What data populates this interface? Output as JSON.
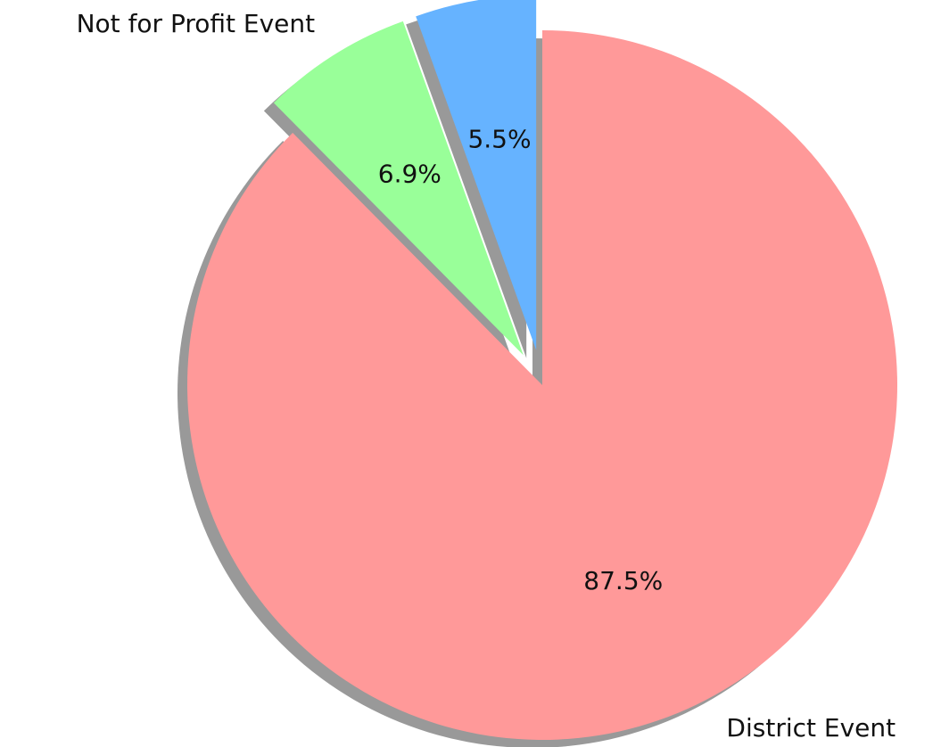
{
  "chart_data": {
    "type": "pie",
    "categories": [
      "District Event",
      "Not for Profit Event",
      null
    ],
    "values": [
      87.5,
      6.9,
      5.5
    ],
    "value_labels": [
      "87.5%",
      "6.9%",
      "5.5%"
    ],
    "colors": [
      "#ff9999",
      "#99ff99",
      "#66b3ff"
    ],
    "explode": [
      0,
      0.1,
      0.1
    ],
    "startangle": 90,
    "counterclock": false,
    "shadow": true
  }
}
